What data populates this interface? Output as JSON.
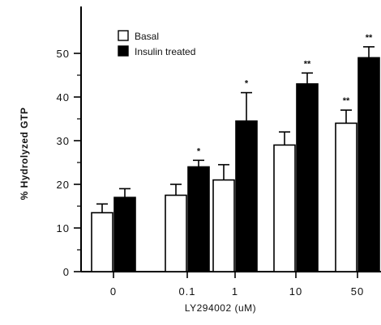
{
  "chart_data": {
    "type": "bar",
    "title": "",
    "xlabel": "LY294002 (uM)",
    "ylabel": "% Hydrolyzed GTP",
    "ylim": [
      0,
      55
    ],
    "yticks": [
      "0",
      "10",
      "20",
      "30",
      "40",
      "50"
    ],
    "ytick_values": [
      0,
      10,
      20,
      30,
      40,
      50
    ],
    "categories": [
      "0",
      "0.1",
      "1",
      "10",
      "50"
    ],
    "legend_position": "top-left",
    "grid": false,
    "series": [
      {
        "name": "Basal",
        "color": "#ffffff",
        "values": [
          13.5,
          17.5,
          21,
          29,
          34
        ],
        "errors": [
          2,
          2.5,
          3.5,
          3,
          3
        ],
        "significance": [
          "",
          "",
          "",
          "",
          "**"
        ]
      },
      {
        "name": "Insulin treated",
        "color": "#000000",
        "values": [
          17,
          24,
          34.5,
          43,
          49
        ],
        "errors": [
          2,
          1.5,
          6.5,
          2.5,
          2.5
        ],
        "significance": [
          "",
          "*",
          "*",
          "**",
          "**"
        ]
      }
    ]
  }
}
